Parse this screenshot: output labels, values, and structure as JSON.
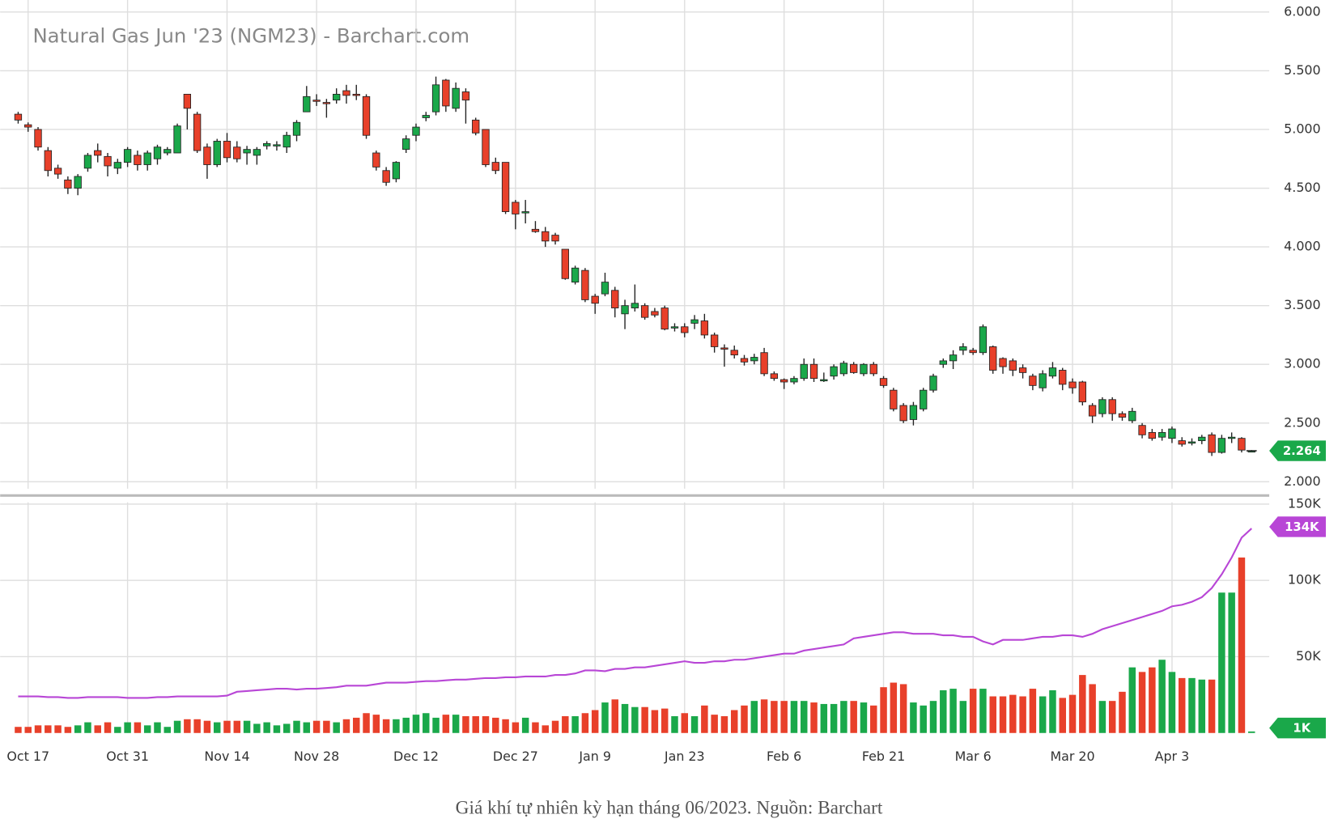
{
  "chart_data": {
    "type": "candlestick",
    "title": "Natural Gas Jun '23 (NGM23) - Barchart.com",
    "categories": [
      null,
      "Oct 17",
      null,
      null,
      null,
      null,
      null,
      null,
      null,
      null,
      null,
      "Oct 31",
      null,
      null,
      null,
      null,
      null,
      null,
      null,
      null,
      null,
      "Nov 14",
      null,
      null,
      null,
      null,
      null,
      null,
      null,
      null,
      "Nov 28",
      null,
      null,
      null,
      null,
      null,
      null,
      null,
      null,
      null,
      "Dec 12",
      null,
      null,
      null,
      null,
      null,
      null,
      null,
      null,
      null,
      "Dec 27",
      null,
      null,
      null,
      null,
      null,
      null,
      null,
      "Jan 9",
      null,
      null,
      null,
      null,
      null,
      null,
      null,
      null,
      "Jan 23",
      null,
      null,
      null,
      null,
      null,
      null,
      null,
      null,
      null,
      "Feb 6",
      null,
      null,
      null,
      null,
      null,
      null,
      null,
      null,
      null,
      "Feb 21",
      null,
      null,
      null,
      null,
      null,
      null,
      null,
      null,
      "Mar 6",
      null,
      null,
      null,
      null,
      null,
      null,
      null,
      null,
      null,
      "Mar 20",
      null,
      null,
      null,
      null,
      null,
      null,
      null,
      null,
      null,
      "Apr 3",
      null,
      null,
      null,
      null,
      null,
      null,
      null,
      null
    ],
    "open": [
      5.13,
      5.04,
      5.0,
      4.82,
      4.67,
      4.57,
      4.5,
      4.67,
      4.82,
      4.77,
      4.67,
      4.72,
      4.78,
      4.7,
      4.75,
      4.8,
      4.8,
      5.3,
      5.13,
      4.85,
      4.7,
      4.9,
      4.85,
      4.8,
      4.78,
      4.86,
      4.86,
      4.85,
      4.95,
      5.15,
      5.25,
      5.23,
      5.25,
      5.33,
      5.3,
      5.28,
      4.8,
      4.65,
      4.58,
      4.83,
      4.95,
      5.1,
      5.15,
      5.42,
      5.18,
      5.32,
      5.08,
      5.0,
      4.72,
      4.72,
      4.38,
      4.3,
      4.15,
      4.13,
      4.1,
      3.98,
      3.7,
      3.8,
      3.58,
      3.6,
      3.63,
      3.43,
      3.48,
      3.5,
      3.45,
      3.48,
      3.32,
      3.32,
      3.35,
      3.37,
      3.25,
      3.14,
      3.12,
      3.05,
      3.03,
      3.1,
      2.92,
      2.87,
      2.85,
      2.88,
      3.0,
      2.87,
      2.9,
      2.92,
      3.0,
      2.92,
      3.0,
      2.88,
      2.78,
      2.65,
      2.53,
      2.62,
      2.78,
      3.0,
      3.03,
      3.12,
      3.12,
      3.1,
      3.15,
      3.05,
      3.03,
      2.97,
      2.9,
      2.8,
      2.9,
      2.95,
      2.85,
      2.85,
      2.65,
      2.58,
      2.7,
      2.58,
      2.52,
      2.48,
      2.42,
      2.38,
      2.37,
      2.35,
      2.33,
      2.35,
      2.4,
      2.25,
      2.37,
      2.37,
      2.264
    ],
    "high": [
      5.15,
      5.06,
      5.02,
      4.85,
      4.7,
      4.6,
      4.62,
      4.8,
      4.88,
      4.8,
      4.75,
      4.85,
      4.82,
      4.82,
      4.87,
      4.85,
      5.05,
      5.3,
      5.15,
      4.88,
      4.92,
      4.97,
      4.9,
      4.86,
      4.85,
      4.9,
      4.9,
      4.98,
      5.08,
      5.37,
      5.3,
      5.26,
      5.35,
      5.38,
      5.38,
      5.3,
      4.82,
      4.68,
      4.73,
      4.95,
      5.05,
      5.15,
      5.45,
      5.43,
      5.4,
      5.35,
      5.1,
      5.0,
      4.76,
      4.72,
      4.4,
      4.4,
      4.22,
      4.17,
      4.12,
      3.98,
      3.84,
      3.82,
      3.6,
      3.78,
      3.66,
      3.55,
      3.68,
      3.52,
      3.48,
      3.5,
      3.35,
      3.35,
      3.42,
      3.43,
      3.27,
      3.17,
      3.16,
      3.08,
      3.09,
      3.14,
      2.94,
      2.88,
      2.9,
      3.05,
      3.05,
      2.93,
      3.0,
      3.03,
      3.02,
      3.01,
      3.02,
      2.9,
      2.8,
      2.67,
      2.68,
      2.8,
      2.92,
      3.05,
      3.12,
      3.18,
      3.14,
      3.34,
      3.16,
      3.06,
      3.05,
      3.0,
      2.92,
      2.95,
      3.02,
      2.97,
      2.88,
      2.86,
      2.67,
      2.72,
      2.72,
      2.6,
      2.63,
      2.5,
      2.45,
      2.45,
      2.47,
      2.38,
      2.37,
      2.4,
      2.42,
      2.4,
      2.42,
      2.38,
      2.27
    ],
    "low": [
      5.05,
      4.98,
      4.82,
      4.6,
      4.58,
      4.45,
      4.44,
      4.64,
      4.72,
      4.6,
      4.62,
      4.68,
      4.65,
      4.65,
      4.7,
      4.78,
      4.8,
      5.0,
      4.8,
      4.58,
      4.68,
      4.72,
      4.72,
      4.7,
      4.7,
      4.83,
      4.82,
      4.8,
      4.9,
      5.15,
      5.2,
      5.1,
      5.22,
      5.22,
      5.25,
      4.92,
      4.65,
      4.52,
      4.55,
      4.8,
      4.9,
      5.07,
      5.12,
      5.15,
      5.15,
      5.05,
      4.95,
      4.68,
      4.62,
      4.28,
      4.15,
      4.2,
      4.12,
      4.0,
      4.02,
      3.72,
      3.68,
      3.53,
      3.43,
      3.58,
      3.4,
      3.3,
      3.45,
      3.38,
      3.4,
      3.29,
      3.28,
      3.23,
      3.3,
      3.22,
      3.1,
      2.98,
      3.05,
      2.99,
      3.0,
      2.9,
      2.86,
      2.79,
      2.83,
      2.86,
      2.85,
      2.85,
      2.87,
      2.9,
      2.92,
      2.9,
      2.9,
      2.8,
      2.6,
      2.5,
      2.48,
      2.6,
      2.76,
      2.97,
      2.96,
      3.08,
      3.08,
      3.08,
      2.92,
      2.92,
      2.9,
      2.88,
      2.78,
      2.77,
      2.88,
      2.78,
      2.75,
      2.65,
      2.5,
      2.55,
      2.52,
      2.52,
      2.5,
      2.37,
      2.35,
      2.35,
      2.33,
      2.3,
      2.31,
      2.32,
      2.22,
      2.24,
      2.33,
      2.25,
      2.26
    ],
    "close": [
      5.08,
      5.02,
      4.85,
      4.65,
      4.62,
      4.5,
      4.6,
      4.78,
      4.78,
      4.69,
      4.72,
      4.83,
      4.7,
      4.8,
      4.85,
      4.83,
      5.03,
      5.18,
      4.82,
      4.7,
      4.9,
      4.76,
      4.75,
      4.83,
      4.83,
      4.88,
      4.87,
      4.95,
      5.06,
      5.28,
      5.24,
      5.22,
      5.3,
      5.29,
      5.29,
      4.95,
      4.68,
      4.55,
      4.72,
      4.92,
      5.02,
      5.12,
      5.38,
      5.2,
      5.35,
      5.25,
      4.97,
      4.7,
      4.65,
      4.3,
      4.28,
      4.3,
      4.13,
      4.05,
      4.05,
      3.73,
      3.82,
      3.55,
      3.52,
      3.7,
      3.48,
      3.5,
      3.52,
      3.4,
      3.42,
      3.3,
      3.32,
      3.27,
      3.38,
      3.25,
      3.15,
      3.13,
      3.08,
      3.02,
      3.06,
      2.92,
      2.88,
      2.85,
      2.88,
      3.0,
      2.88,
      2.87,
      2.98,
      3.01,
      2.93,
      3.0,
      2.92,
      2.82,
      2.62,
      2.52,
      2.65,
      2.78,
      2.9,
      3.03,
      3.08,
      3.15,
      3.1,
      3.32,
      2.95,
      2.98,
      2.95,
      2.93,
      2.82,
      2.92,
      2.97,
      2.83,
      2.8,
      2.68,
      2.56,
      2.7,
      2.58,
      2.55,
      2.6,
      2.4,
      2.37,
      2.42,
      2.45,
      2.32,
      2.34,
      2.38,
      2.25,
      2.37,
      2.38,
      2.27,
      2.264
    ],
    "volume": [
      4000,
      4000,
      5000,
      5000,
      5000,
      4000,
      5000,
      7000,
      5000,
      7000,
      4000,
      7000,
      7000,
      5000,
      7000,
      4000,
      8000,
      9000,
      9000,
      8000,
      7000,
      8000,
      8000,
      8000,
      6000,
      7000,
      5000,
      6000,
      8000,
      7000,
      8000,
      8000,
      7000,
      9000,
      10000,
      13000,
      12000,
      9000,
      9000,
      10000,
      12000,
      13000,
      10000,
      12000,
      12000,
      11000,
      11000,
      11000,
      10000,
      9000,
      7000,
      10000,
      7000,
      5000,
      8000,
      11000,
      11000,
      13000,
      15000,
      20000,
      22000,
      19000,
      17000,
      17000,
      15000,
      16000,
      11000,
      13000,
      11000,
      18000,
      12000,
      11000,
      15000,
      18000,
      21000,
      22000,
      21000,
      21000,
      21000,
      21000,
      20000,
      19000,
      19000,
      21000,
      21000,
      20000,
      18000,
      30000,
      33000,
      32000,
      20000,
      18000,
      21000,
      28000,
      29000,
      21000,
      29000,
      29000,
      24000,
      24000,
      25000,
      24000,
      29000,
      24000,
      28000,
      23000,
      25000,
      38000,
      32000,
      21000,
      21000,
      27000,
      43000,
      40000,
      43000,
      48000,
      40000,
      36000,
      36000,
      35000,
      35000,
      92000,
      92000,
      115000,
      1000
    ],
    "open_interest": [
      24000,
      24000,
      24000,
      23500,
      23500,
      23000,
      23000,
      23500,
      23500,
      23500,
      23500,
      23000,
      23000,
      23000,
      23500,
      23500,
      24000,
      24000,
      24000,
      24000,
      24000,
      24500,
      27000,
      27500,
      28000,
      28500,
      29000,
      29000,
      28500,
      29000,
      29000,
      29500,
      30000,
      31000,
      31000,
      31000,
      32000,
      33000,
      33000,
      33000,
      33500,
      34000,
      34000,
      34500,
      35000,
      35000,
      35500,
      36000,
      36000,
      36500,
      36500,
      37000,
      37000,
      37000,
      38000,
      38000,
      39000,
      41000,
      41000,
      40500,
      42000,
      42000,
      43000,
      43000,
      44000,
      45000,
      46000,
      47000,
      46000,
      46000,
      47000,
      47000,
      48000,
      48000,
      49000,
      50000,
      51000,
      52000,
      52000,
      54000,
      55000,
      56000,
      57000,
      58000,
      62000,
      63000,
      64000,
      65000,
      66000,
      66000,
      65000,
      65000,
      65000,
      64000,
      64000,
      63000,
      63000,
      60000,
      58000,
      61000,
      61000,
      61000,
      62000,
      63000,
      63000,
      64000,
      64000,
      63000,
      65000,
      68000,
      70000,
      72000,
      74000,
      76000,
      78000,
      80000,
      83000,
      84000,
      86000,
      89000,
      95000,
      104000,
      115000,
      128000,
      134000
    ],
    "open_interest_last_label": "134K",
    "volume_last_label": "1K",
    "ylim": [
      2,
      6
    ],
    "yticks": [
      {
        "value": 2,
        "label": "2.000"
      },
      {
        "value": 2.5,
        "label": "2.500"
      },
      {
        "value": 3,
        "label": "3.000"
      },
      {
        "value": 3.5,
        "label": "3.500"
      },
      {
        "value": 4,
        "label": "4.000"
      },
      {
        "value": 4.5,
        "label": "4.500"
      },
      {
        "value": 5,
        "label": "5.000"
      },
      {
        "value": 5.5,
        "label": "5.500"
      },
      {
        "value": 6,
        "label": "6.000"
      }
    ],
    "y2lim": [
      0,
      150000
    ],
    "y2ticks": [
      {
        "value": 50000,
        "label": "50K"
      },
      {
        "value": 100000,
        "label": "100K"
      },
      {
        "value": 150000,
        "label": "150K"
      }
    ],
    "up_color": "#1aa84a",
    "down_color": "#e8402a",
    "open_interest_color": "#b846d6",
    "grid": true
  },
  "caption": "Giá khí tự nhiên kỳ hạn tháng 06/2023. Nguồn: Barchart"
}
